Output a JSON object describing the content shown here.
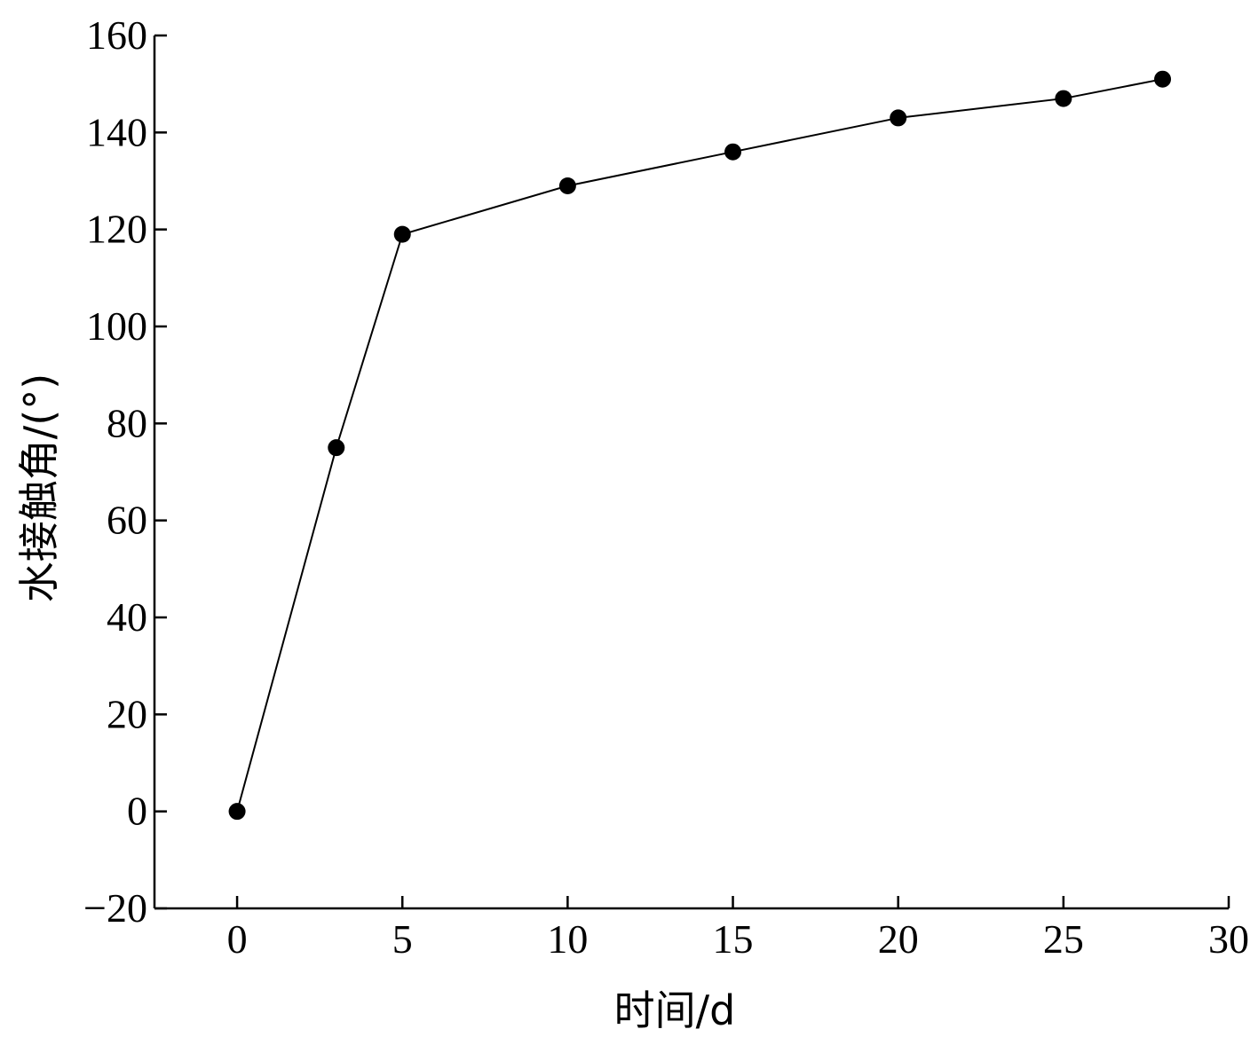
{
  "chart_data": {
    "type": "line",
    "title": "",
    "xlabel": "时间/d",
    "ylabel": "水接触角/(°)",
    "xlim": [
      -2.5,
      30
    ],
    "ylim": [
      -20,
      160
    ],
    "xticks": [
      0,
      5,
      10,
      15,
      20,
      25,
      30
    ],
    "yticks": [
      -20,
      0,
      20,
      40,
      60,
      80,
      100,
      120,
      140,
      160
    ],
    "xtick_labels": [
      "0",
      "5",
      "10",
      "15",
      "20",
      "25",
      "30"
    ],
    "ytick_labels": [
      "−20",
      "0",
      "20",
      "40",
      "60",
      "80",
      "100",
      "120",
      "140",
      "160"
    ],
    "grid": false,
    "legend": "none",
    "series": [
      {
        "x": [
          0,
          3,
          5,
          10,
          15,
          20,
          25,
          28
        ],
        "y": [
          0,
          75,
          119,
          129,
          136,
          143,
          147,
          151
        ],
        "color": "#000000",
        "marker": "filled-circle"
      }
    ]
  }
}
